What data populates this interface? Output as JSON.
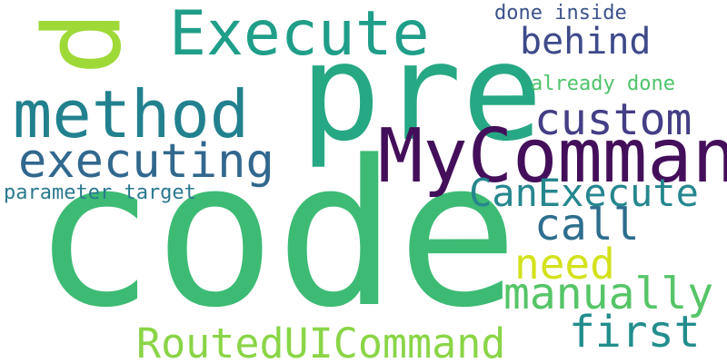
{
  "words": [
    {
      "id": "code",
      "text": "code",
      "color": "#3dbb75"
    },
    {
      "id": "pre",
      "text": "pre",
      "color": "#26a884"
    },
    {
      "id": "mycommand",
      "text": "MyCommand",
      "color": "#440f5a"
    },
    {
      "id": "p",
      "text": "p",
      "color": "#9fd938"
    },
    {
      "id": "execute",
      "text": "Execute",
      "color": "#1f9e89"
    },
    {
      "id": "method",
      "text": "method",
      "color": "#22818e"
    },
    {
      "id": "executing",
      "text": "executing",
      "color": "#31688e"
    },
    {
      "id": "custom",
      "text": "custom",
      "color": "#433e85"
    },
    {
      "id": "behind",
      "text": "behind",
      "color": "#3e4a89"
    },
    {
      "id": "canexecute",
      "text": "CanExecute",
      "color": "#25878e"
    },
    {
      "id": "call",
      "text": "call",
      "color": "#2e6e8e"
    },
    {
      "id": "need",
      "text": "need",
      "color": "#d3e21b"
    },
    {
      "id": "manually",
      "text": "manually",
      "color": "#55c567"
    },
    {
      "id": "first",
      "text": "first",
      "color": "#218e8d"
    },
    {
      "id": "routeduicommand",
      "text": "RoutedUICommand",
      "color": "#8ad547"
    },
    {
      "id": "parameter-target",
      "text": "parameter target",
      "color": "#29798e"
    },
    {
      "id": "already-done",
      "text": "already done",
      "color": "#4ec36b"
    },
    {
      "id": "done-inside",
      "text": "done inside",
      "color": "#3b528b"
    }
  ]
}
